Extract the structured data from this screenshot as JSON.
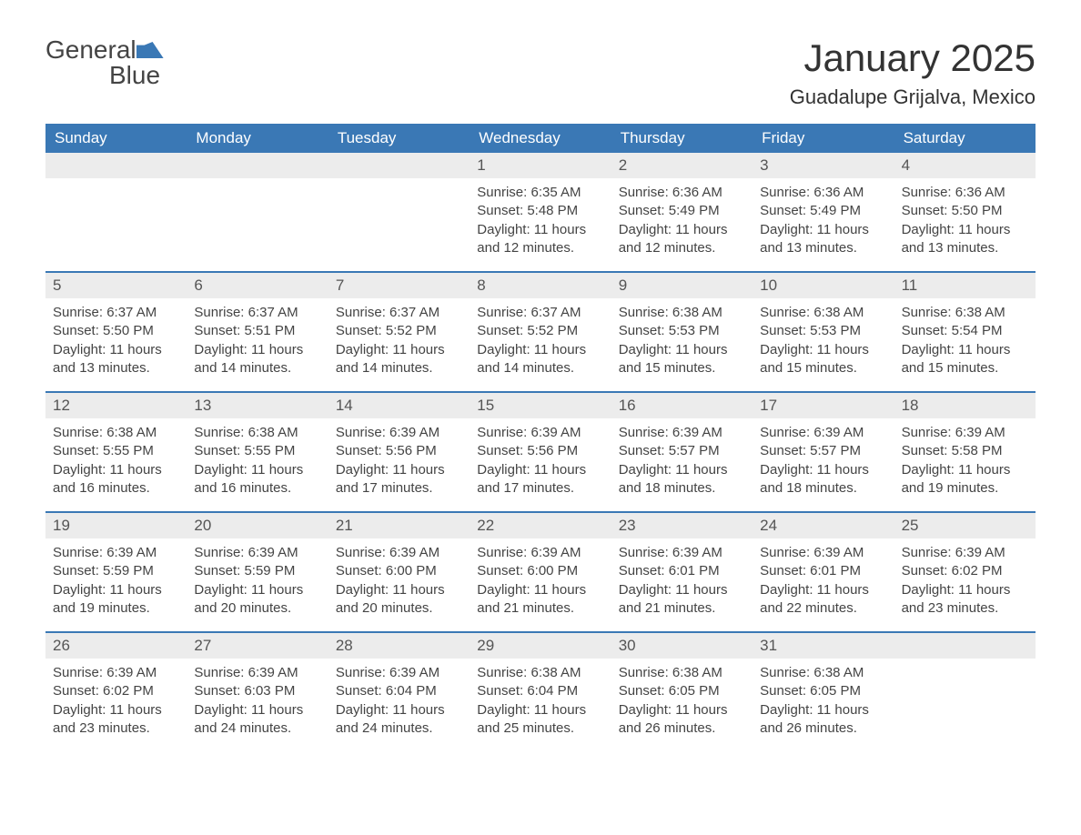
{
  "logo": {
    "word1": "General",
    "word2": "Blue"
  },
  "title": "January 2025",
  "location": "Guadalupe Grijalva, Mexico",
  "colors": {
    "header_bg": "#3a78b5",
    "header_text": "#ffffff",
    "daynum_bg": "#ececec",
    "text": "#404040",
    "week_border": "#3a78b5",
    "page_bg": "#ffffff"
  },
  "fonts": {
    "title_size_pt": 32,
    "location_size_pt": 17,
    "header_size_pt": 13,
    "body_size_pt": 11
  },
  "day_names": [
    "Sunday",
    "Monday",
    "Tuesday",
    "Wednesday",
    "Thursday",
    "Friday",
    "Saturday"
  ],
  "weeks": [
    [
      {
        "day": "",
        "sunrise": "",
        "sunset": "",
        "daylight": ""
      },
      {
        "day": "",
        "sunrise": "",
        "sunset": "",
        "daylight": ""
      },
      {
        "day": "",
        "sunrise": "",
        "sunset": "",
        "daylight": ""
      },
      {
        "day": "1",
        "sunrise": "Sunrise: 6:35 AM",
        "sunset": "Sunset: 5:48 PM",
        "daylight": "Daylight: 11 hours and 12 minutes."
      },
      {
        "day": "2",
        "sunrise": "Sunrise: 6:36 AM",
        "sunset": "Sunset: 5:49 PM",
        "daylight": "Daylight: 11 hours and 12 minutes."
      },
      {
        "day": "3",
        "sunrise": "Sunrise: 6:36 AM",
        "sunset": "Sunset: 5:49 PM",
        "daylight": "Daylight: 11 hours and 13 minutes."
      },
      {
        "day": "4",
        "sunrise": "Sunrise: 6:36 AM",
        "sunset": "Sunset: 5:50 PM",
        "daylight": "Daylight: 11 hours and 13 minutes."
      }
    ],
    [
      {
        "day": "5",
        "sunrise": "Sunrise: 6:37 AM",
        "sunset": "Sunset: 5:50 PM",
        "daylight": "Daylight: 11 hours and 13 minutes."
      },
      {
        "day": "6",
        "sunrise": "Sunrise: 6:37 AM",
        "sunset": "Sunset: 5:51 PM",
        "daylight": "Daylight: 11 hours and 14 minutes."
      },
      {
        "day": "7",
        "sunrise": "Sunrise: 6:37 AM",
        "sunset": "Sunset: 5:52 PM",
        "daylight": "Daylight: 11 hours and 14 minutes."
      },
      {
        "day": "8",
        "sunrise": "Sunrise: 6:37 AM",
        "sunset": "Sunset: 5:52 PM",
        "daylight": "Daylight: 11 hours and 14 minutes."
      },
      {
        "day": "9",
        "sunrise": "Sunrise: 6:38 AM",
        "sunset": "Sunset: 5:53 PM",
        "daylight": "Daylight: 11 hours and 15 minutes."
      },
      {
        "day": "10",
        "sunrise": "Sunrise: 6:38 AM",
        "sunset": "Sunset: 5:53 PM",
        "daylight": "Daylight: 11 hours and 15 minutes."
      },
      {
        "day": "11",
        "sunrise": "Sunrise: 6:38 AM",
        "sunset": "Sunset: 5:54 PM",
        "daylight": "Daylight: 11 hours and 15 minutes."
      }
    ],
    [
      {
        "day": "12",
        "sunrise": "Sunrise: 6:38 AM",
        "sunset": "Sunset: 5:55 PM",
        "daylight": "Daylight: 11 hours and 16 minutes."
      },
      {
        "day": "13",
        "sunrise": "Sunrise: 6:38 AM",
        "sunset": "Sunset: 5:55 PM",
        "daylight": "Daylight: 11 hours and 16 minutes."
      },
      {
        "day": "14",
        "sunrise": "Sunrise: 6:39 AM",
        "sunset": "Sunset: 5:56 PM",
        "daylight": "Daylight: 11 hours and 17 minutes."
      },
      {
        "day": "15",
        "sunrise": "Sunrise: 6:39 AM",
        "sunset": "Sunset: 5:56 PM",
        "daylight": "Daylight: 11 hours and 17 minutes."
      },
      {
        "day": "16",
        "sunrise": "Sunrise: 6:39 AM",
        "sunset": "Sunset: 5:57 PM",
        "daylight": "Daylight: 11 hours and 18 minutes."
      },
      {
        "day": "17",
        "sunrise": "Sunrise: 6:39 AM",
        "sunset": "Sunset: 5:57 PM",
        "daylight": "Daylight: 11 hours and 18 minutes."
      },
      {
        "day": "18",
        "sunrise": "Sunrise: 6:39 AM",
        "sunset": "Sunset: 5:58 PM",
        "daylight": "Daylight: 11 hours and 19 minutes."
      }
    ],
    [
      {
        "day": "19",
        "sunrise": "Sunrise: 6:39 AM",
        "sunset": "Sunset: 5:59 PM",
        "daylight": "Daylight: 11 hours and 19 minutes."
      },
      {
        "day": "20",
        "sunrise": "Sunrise: 6:39 AM",
        "sunset": "Sunset: 5:59 PM",
        "daylight": "Daylight: 11 hours and 20 minutes."
      },
      {
        "day": "21",
        "sunrise": "Sunrise: 6:39 AM",
        "sunset": "Sunset: 6:00 PM",
        "daylight": "Daylight: 11 hours and 20 minutes."
      },
      {
        "day": "22",
        "sunrise": "Sunrise: 6:39 AM",
        "sunset": "Sunset: 6:00 PM",
        "daylight": "Daylight: 11 hours and 21 minutes."
      },
      {
        "day": "23",
        "sunrise": "Sunrise: 6:39 AM",
        "sunset": "Sunset: 6:01 PM",
        "daylight": "Daylight: 11 hours and 21 minutes."
      },
      {
        "day": "24",
        "sunrise": "Sunrise: 6:39 AM",
        "sunset": "Sunset: 6:01 PM",
        "daylight": "Daylight: 11 hours and 22 minutes."
      },
      {
        "day": "25",
        "sunrise": "Sunrise: 6:39 AM",
        "sunset": "Sunset: 6:02 PM",
        "daylight": "Daylight: 11 hours and 23 minutes."
      }
    ],
    [
      {
        "day": "26",
        "sunrise": "Sunrise: 6:39 AM",
        "sunset": "Sunset: 6:02 PM",
        "daylight": "Daylight: 11 hours and 23 minutes."
      },
      {
        "day": "27",
        "sunrise": "Sunrise: 6:39 AM",
        "sunset": "Sunset: 6:03 PM",
        "daylight": "Daylight: 11 hours and 24 minutes."
      },
      {
        "day": "28",
        "sunrise": "Sunrise: 6:39 AM",
        "sunset": "Sunset: 6:04 PM",
        "daylight": "Daylight: 11 hours and 24 minutes."
      },
      {
        "day": "29",
        "sunrise": "Sunrise: 6:38 AM",
        "sunset": "Sunset: 6:04 PM",
        "daylight": "Daylight: 11 hours and 25 minutes."
      },
      {
        "day": "30",
        "sunrise": "Sunrise: 6:38 AM",
        "sunset": "Sunset: 6:05 PM",
        "daylight": "Daylight: 11 hours and 26 minutes."
      },
      {
        "day": "31",
        "sunrise": "Sunrise: 6:38 AM",
        "sunset": "Sunset: 6:05 PM",
        "daylight": "Daylight: 11 hours and 26 minutes."
      },
      {
        "day": "",
        "sunrise": "",
        "sunset": "",
        "daylight": ""
      }
    ]
  ]
}
